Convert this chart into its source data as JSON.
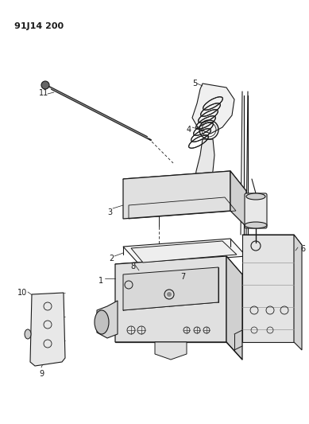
{
  "title": "91J14 200",
  "bg": "#ffffff",
  "lc": "#1a1a1a",
  "fig_w": 3.89,
  "fig_h": 5.33,
  "dpi": 100,
  "xlim": [
    0,
    389
  ],
  "ylim": [
    0,
    533
  ]
}
